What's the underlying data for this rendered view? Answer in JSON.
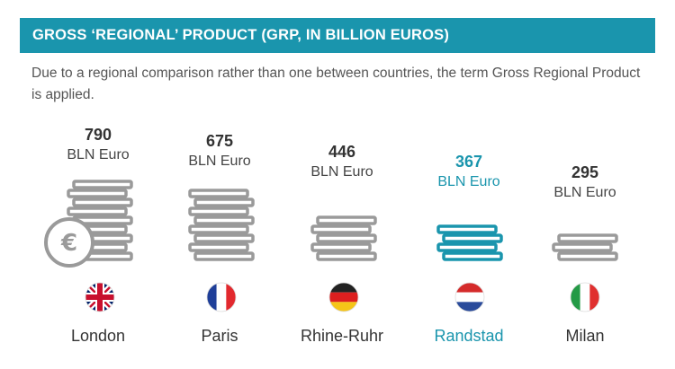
{
  "banner": {
    "title": "GROSS ‘REGIONAL’ PRODUCT (GRP, IN BILLION EUROS)"
  },
  "subtitle": "Due to a regional comparison rather than one between countries, the term Gross Regional Product is applied.",
  "colors": {
    "accent": "#1a95ad",
    "coin_gray": "#9a9a9a",
    "text": "#333333"
  },
  "icons": {
    "euro": "euro-coin-icon",
    "flags": [
      "uk-flag-icon",
      "france-flag-icon",
      "germany-flag-icon",
      "netherlands-flag-icon",
      "italy-flag-icon"
    ]
  },
  "chart_data": {
    "type": "bar",
    "title": "GROSS ‘REGIONAL’ PRODUCT (GRP, IN BILLION EUROS)",
    "categories": [
      "London",
      "Paris",
      "Rhine-Ruhr",
      "Randstad",
      "Milan"
    ],
    "values": [
      790,
      675,
      446,
      367,
      295
    ],
    "unit": "BLN Euro",
    "value_labels": [
      "790",
      "675",
      "446",
      "367",
      "295"
    ],
    "highlighted": "Randstad"
  }
}
